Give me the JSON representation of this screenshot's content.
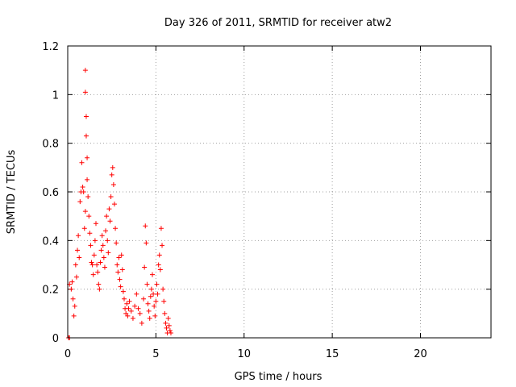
{
  "chart_data": {
    "type": "scatter",
    "title": "Day 326 of 2011, SRMTID for receiver atw2",
    "xlabel": "GPS time / hours",
    "ylabel": "SRMTID / TECUs",
    "xlim": [
      0,
      24
    ],
    "ylim": [
      0,
      1.2
    ],
    "xticks": [
      0,
      5,
      10,
      15,
      20
    ],
    "yticks": [
      0,
      0.2,
      0.4,
      0.6,
      0.8,
      1,
      1.2
    ],
    "ytick_labels": [
      "0",
      "0.2",
      "0.4",
      "0.6",
      "0.8",
      "1",
      "1.2"
    ],
    "grid": true,
    "marker": "+",
    "color": "#ff0000",
    "series": [
      {
        "name": "SRMTID",
        "points": [
          [
            0.05,
            0.0
          ],
          [
            0.1,
            0.0
          ],
          [
            0.1,
            0.22
          ],
          [
            0.2,
            0.2
          ],
          [
            0.25,
            0.23
          ],
          [
            0.3,
            0.16
          ],
          [
            0.35,
            0.09
          ],
          [
            0.4,
            0.13
          ],
          [
            0.45,
            0.3
          ],
          [
            0.5,
            0.25
          ],
          [
            0.55,
            0.36
          ],
          [
            0.6,
            0.42
          ],
          [
            0.65,
            0.33
          ],
          [
            0.7,
            0.56
          ],
          [
            0.75,
            0.6
          ],
          [
            0.8,
            0.72
          ],
          [
            0.85,
            0.62
          ],
          [
            0.9,
            0.6
          ],
          [
            0.95,
            0.45
          ],
          [
            1.0,
            0.52
          ],
          [
            1.0,
            1.1
          ],
          [
            1.0,
            1.01
          ],
          [
            1.05,
            0.91
          ],
          [
            1.05,
            0.83
          ],
          [
            1.1,
            0.65
          ],
          [
            1.1,
            0.74
          ],
          [
            1.15,
            0.58
          ],
          [
            1.2,
            0.5
          ],
          [
            1.25,
            0.43
          ],
          [
            1.3,
            0.38
          ],
          [
            1.35,
            0.31
          ],
          [
            1.4,
            0.3
          ],
          [
            1.45,
            0.26
          ],
          [
            1.5,
            0.34
          ],
          [
            1.55,
            0.4
          ],
          [
            1.6,
            0.47
          ],
          [
            1.65,
            0.3
          ],
          [
            1.7,
            0.27
          ],
          [
            1.75,
            0.22
          ],
          [
            1.8,
            0.2
          ],
          [
            1.85,
            0.31
          ],
          [
            1.9,
            0.36
          ],
          [
            1.95,
            0.42
          ],
          [
            2.0,
            0.38
          ],
          [
            2.05,
            0.33
          ],
          [
            2.1,
            0.29
          ],
          [
            2.15,
            0.44
          ],
          [
            2.2,
            0.5
          ],
          [
            2.25,
            0.4
          ],
          [
            2.3,
            0.35
          ],
          [
            2.35,
            0.53
          ],
          [
            2.4,
            0.48
          ],
          [
            2.45,
            0.58
          ],
          [
            2.5,
            0.67
          ],
          [
            2.55,
            0.7
          ],
          [
            2.6,
            0.63
          ],
          [
            2.65,
            0.55
          ],
          [
            2.7,
            0.45
          ],
          [
            2.75,
            0.39
          ],
          [
            2.8,
            0.3
          ],
          [
            2.85,
            0.27
          ],
          [
            2.9,
            0.33
          ],
          [
            2.95,
            0.24
          ],
          [
            3.0,
            0.21
          ],
          [
            3.05,
            0.34
          ],
          [
            3.1,
            0.28
          ],
          [
            3.15,
            0.19
          ],
          [
            3.2,
            0.16
          ],
          [
            3.25,
            0.12
          ],
          [
            3.3,
            0.1
          ],
          [
            3.35,
            0.14
          ],
          [
            3.4,
            0.09
          ],
          [
            3.45,
            0.12
          ],
          [
            3.5,
            0.15
          ],
          [
            3.6,
            0.11
          ],
          [
            3.7,
            0.08
          ],
          [
            3.8,
            0.13
          ],
          [
            3.9,
            0.18
          ],
          [
            4.0,
            0.12
          ],
          [
            4.1,
            0.1
          ],
          [
            4.2,
            0.06
          ],
          [
            4.3,
            0.16
          ],
          [
            4.35,
            0.29
          ],
          [
            4.4,
            0.46
          ],
          [
            4.45,
            0.39
          ],
          [
            4.5,
            0.22
          ],
          [
            4.55,
            0.14
          ],
          [
            4.6,
            0.11
          ],
          [
            4.65,
            0.08
          ],
          [
            4.7,
            0.17
          ],
          [
            4.75,
            0.2
          ],
          [
            4.8,
            0.26
          ],
          [
            4.85,
            0.18
          ],
          [
            4.9,
            0.13
          ],
          [
            4.95,
            0.09
          ],
          [
            5.0,
            0.15
          ],
          [
            5.05,
            0.22
          ],
          [
            5.1,
            0.18
          ],
          [
            5.15,
            0.3
          ],
          [
            5.2,
            0.34
          ],
          [
            5.25,
            0.28
          ],
          [
            5.3,
            0.45
          ],
          [
            5.35,
            0.38
          ],
          [
            5.4,
            0.2
          ],
          [
            5.45,
            0.15
          ],
          [
            5.5,
            0.1
          ],
          [
            5.55,
            0.06
          ],
          [
            5.6,
            0.04
          ],
          [
            5.65,
            0.02
          ],
          [
            5.7,
            0.08
          ],
          [
            5.75,
            0.05
          ],
          [
            5.8,
            0.03
          ],
          [
            5.85,
            0.02
          ]
        ]
      }
    ]
  }
}
